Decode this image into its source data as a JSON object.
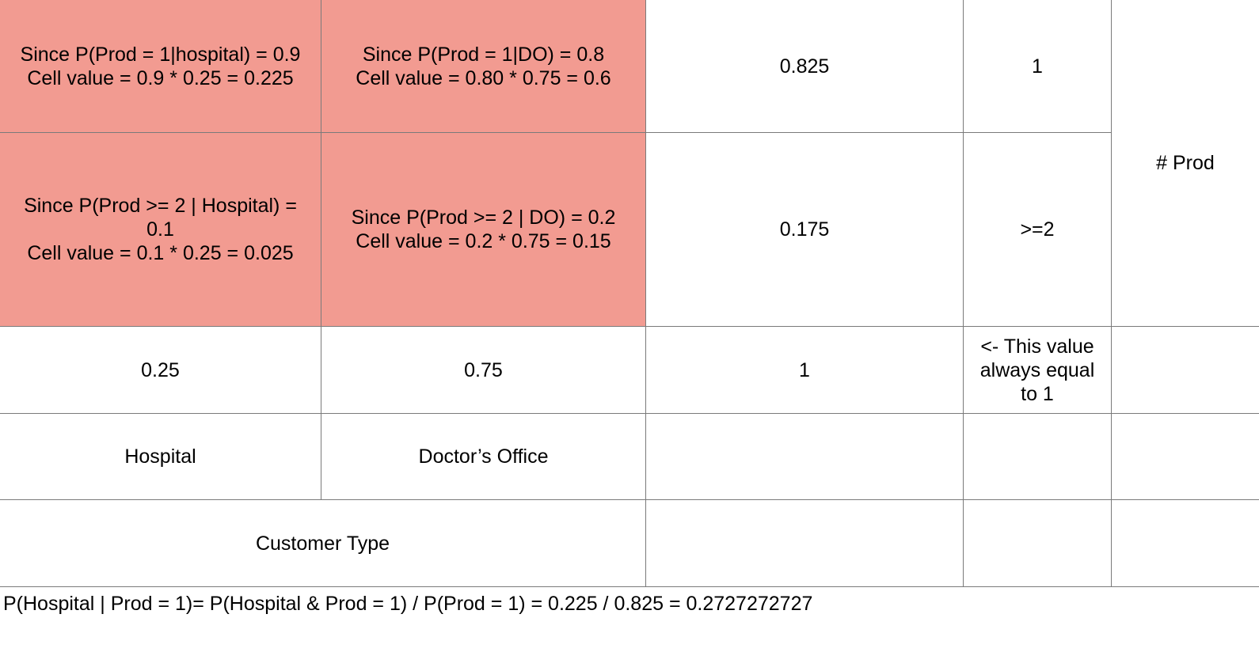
{
  "table": {
    "row1": {
      "hospital_cell": "Since P(Prod = 1|hospital) = 0.9\nCell value = 0.9 * 0.25 = 0.225",
      "do_cell": "Since P(Prod = 1|DO) = 0.8\nCell value = 0.80 * 0.75 = 0.6",
      "total": "0.825",
      "label": "1"
    },
    "row2": {
      "hospital_cell": "Since P(Prod >= 2 | Hospital) =\n0.1\nCell value = 0.1 * 0.25 = 0.025",
      "do_cell": "Since P(Prod >= 2 | DO) = 0.2\nCell value = 0.2 * 0.75 = 0.15",
      "total": "0.175",
      "label": ">=2"
    },
    "prod_header": "# Prod",
    "totals_row": {
      "hospital": "0.25",
      "do": "0.75",
      "grand_total": "1",
      "note": "<- This value\nalways equal\nto 1"
    },
    "category_row": {
      "hospital": "Hospital",
      "do": "Doctor’s Office"
    },
    "customer_type": "Customer Type"
  },
  "footer_formula": "P(Hospital | Prod = 1)= P(Hospital & Prod = 1) / P(Prod = 1) = 0.225 / 0.825 = 0.2727272727",
  "colors": {
    "highlight": "#f29b91",
    "border": "#7a7a7a"
  }
}
